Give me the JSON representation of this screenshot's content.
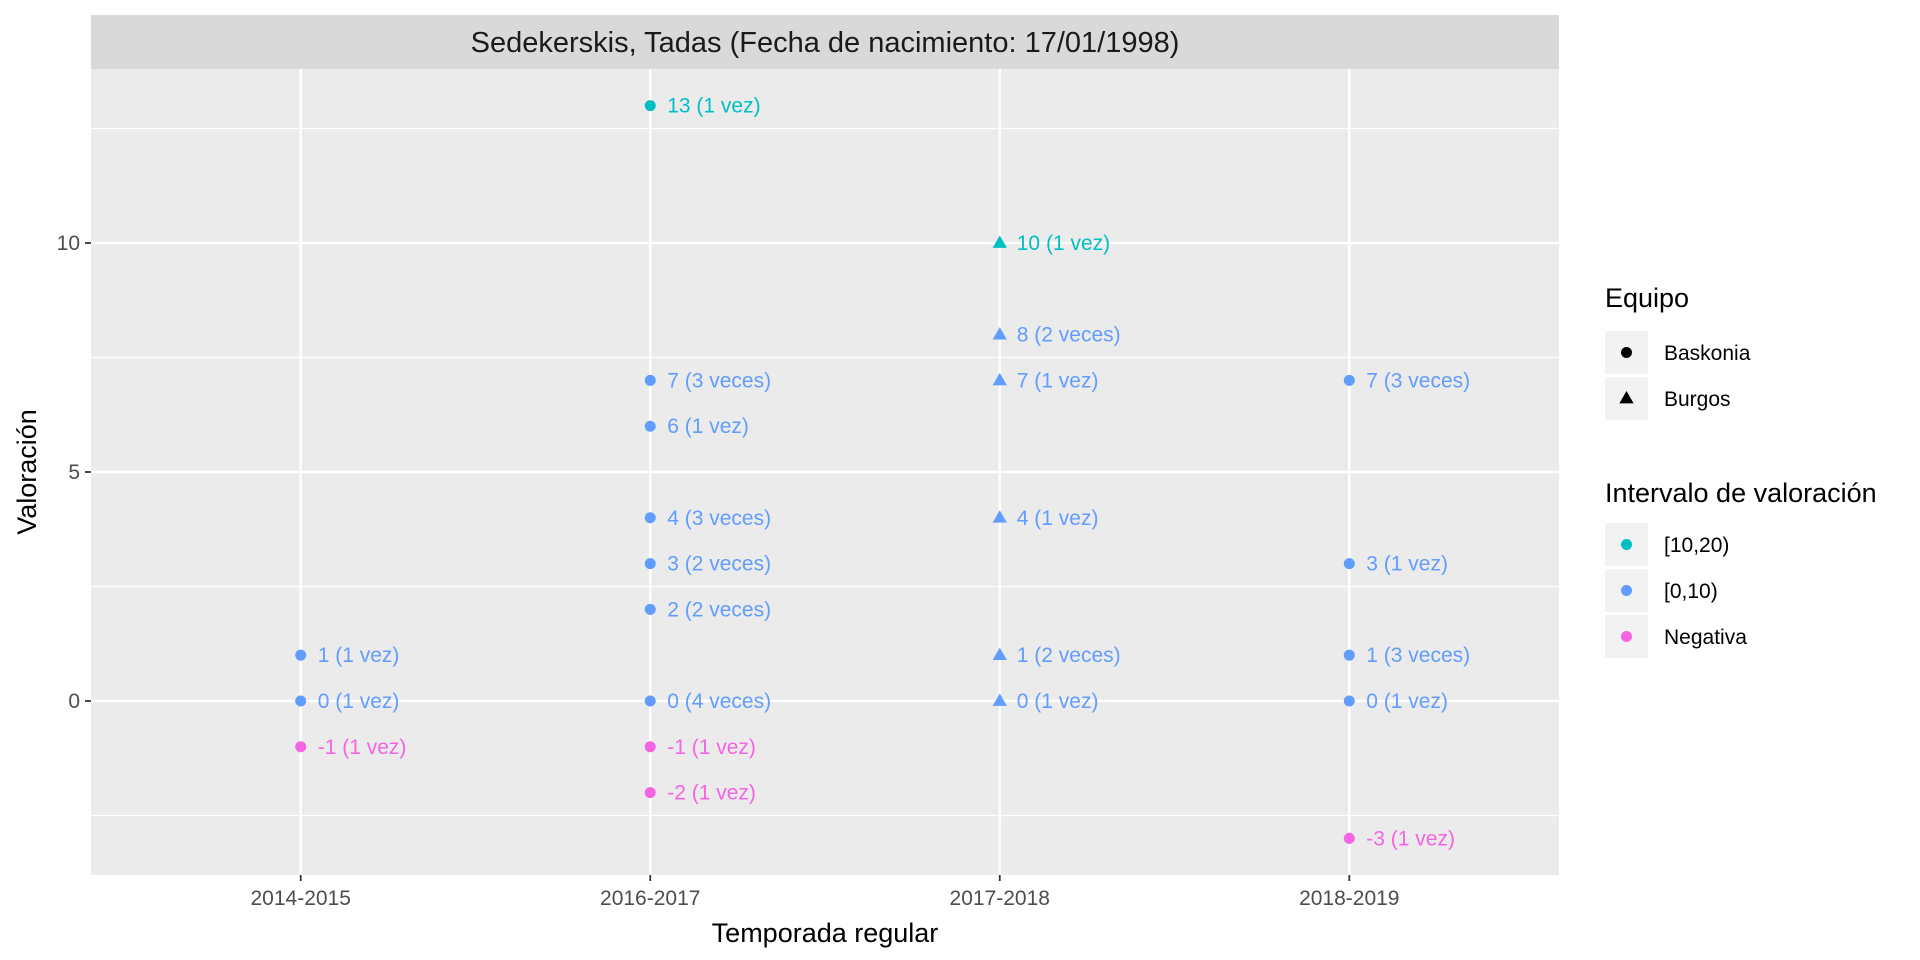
{
  "chart_data": {
    "type": "scatter",
    "title": "Sedekerskis, Tadas (Fecha de nacimiento: 17/01/1998)",
    "xlabel": "Temporada regular",
    "ylabel": "Valoración",
    "categories": [
      "2014-2015",
      "2016-2017",
      "2017-2018",
      "2018-2019"
    ],
    "ylim": [
      -3.8,
      13.8
    ],
    "yticks": [
      0,
      5,
      10
    ],
    "grid": true,
    "legend_position": "right",
    "legend": {
      "shape_title": "Equipo",
      "shape_items": [
        {
          "label": "Baskonia",
          "shape": "circle"
        },
        {
          "label": "Burgos",
          "shape": "triangle"
        }
      ],
      "color_title": "Intervalo de valoración",
      "color_items": [
        {
          "label": "[10,20)",
          "color": "#00bfc4"
        },
        {
          "label": "[0,10)",
          "color": "#619cff"
        },
        {
          "label": "Negativa",
          "color": "#f564e3"
        }
      ]
    },
    "points": [
      {
        "x": "2014-2015",
        "y": 1,
        "team": "Baskonia",
        "interval": "[0,10)",
        "label": "1 (1 vez)"
      },
      {
        "x": "2014-2015",
        "y": 0,
        "team": "Baskonia",
        "interval": "[0,10)",
        "label": "0 (1 vez)"
      },
      {
        "x": "2014-2015",
        "y": -1,
        "team": "Baskonia",
        "interval": "Negativa",
        "label": "-1 (1 vez)"
      },
      {
        "x": "2016-2017",
        "y": 13,
        "team": "Baskonia",
        "interval": "[10,20)",
        "label": "13 (1 vez)"
      },
      {
        "x": "2016-2017",
        "y": 7,
        "team": "Baskonia",
        "interval": "[0,10)",
        "label": "7 (3 veces)"
      },
      {
        "x": "2016-2017",
        "y": 6,
        "team": "Baskonia",
        "interval": "[0,10)",
        "label": "6 (1 vez)"
      },
      {
        "x": "2016-2017",
        "y": 4,
        "team": "Baskonia",
        "interval": "[0,10)",
        "label": "4 (3 veces)"
      },
      {
        "x": "2016-2017",
        "y": 3,
        "team": "Baskonia",
        "interval": "[0,10)",
        "label": "3 (2 veces)"
      },
      {
        "x": "2016-2017",
        "y": 2,
        "team": "Baskonia",
        "interval": "[0,10)",
        "label": "2 (2 veces)"
      },
      {
        "x": "2016-2017",
        "y": 0,
        "team": "Baskonia",
        "interval": "[0,10)",
        "label": "0 (4 veces)"
      },
      {
        "x": "2016-2017",
        "y": -1,
        "team": "Baskonia",
        "interval": "Negativa",
        "label": "-1 (1 vez)"
      },
      {
        "x": "2016-2017",
        "y": -2,
        "team": "Baskonia",
        "interval": "Negativa",
        "label": "-2 (1 vez)"
      },
      {
        "x": "2017-2018",
        "y": 10,
        "team": "Burgos",
        "interval": "[10,20)",
        "label": "10 (1 vez)"
      },
      {
        "x": "2017-2018",
        "y": 8,
        "team": "Burgos",
        "interval": "[0,10)",
        "label": "8 (2 veces)"
      },
      {
        "x": "2017-2018",
        "y": 7,
        "team": "Burgos",
        "interval": "[0,10)",
        "label": "7 (1 vez)"
      },
      {
        "x": "2017-2018",
        "y": 4,
        "team": "Burgos",
        "interval": "[0,10)",
        "label": "4 (1 vez)"
      },
      {
        "x": "2017-2018",
        "y": 1,
        "team": "Burgos",
        "interval": "[0,10)",
        "label": "1 (2 veces)"
      },
      {
        "x": "2017-2018",
        "y": 0,
        "team": "Burgos",
        "interval": "[0,10)",
        "label": "0 (1 vez)"
      },
      {
        "x": "2018-2019",
        "y": 7,
        "team": "Baskonia",
        "interval": "[0,10)",
        "label": "7 (3 veces)"
      },
      {
        "x": "2018-2019",
        "y": 3,
        "team": "Baskonia",
        "interval": "[0,10)",
        "label": "3 (1 vez)"
      },
      {
        "x": "2018-2019",
        "y": 1,
        "team": "Baskonia",
        "interval": "[0,10)",
        "label": "1 (3 veces)"
      },
      {
        "x": "2018-2019",
        "y": 0,
        "team": "Baskonia",
        "interval": "[0,10)",
        "label": "0 (1 vez)"
      },
      {
        "x": "2018-2019",
        "y": -3,
        "team": "Baskonia",
        "interval": "Negativa",
        "label": "-3 (1 vez)"
      }
    ]
  }
}
